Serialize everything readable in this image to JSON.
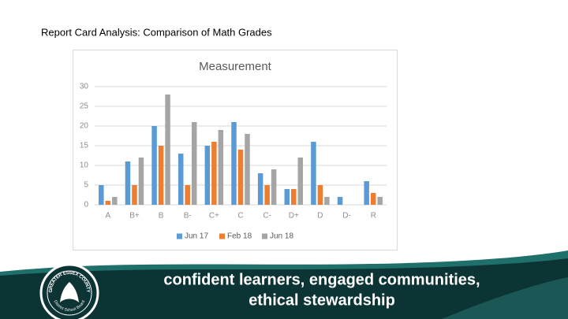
{
  "header": {
    "title": "Report Card Analysis: Comparison of Math Grades"
  },
  "chart_data": {
    "type": "bar",
    "title": "Measurement",
    "categories": [
      "A",
      "B+",
      "B",
      "B-",
      "C+",
      "C",
      "C-",
      "D+",
      "D",
      "D-",
      "R"
    ],
    "series": [
      {
        "name": "Jun 17",
        "color": "#5b9bd5",
        "values": [
          5,
          11,
          20,
          13,
          15,
          21,
          8,
          4,
          16,
          2,
          6
        ]
      },
      {
        "name": "Feb 18",
        "color": "#ed7d31",
        "values": [
          1,
          5,
          15,
          5,
          16,
          14,
          5,
          4,
          5,
          0,
          3
        ]
      },
      {
        "name": "Jun 18",
        "color": "#a5a5a5",
        "values": [
          2,
          12,
          28,
          21,
          19,
          18,
          9,
          12,
          2,
          0,
          2
        ]
      }
    ],
    "ylim": [
      0,
      30
    ],
    "yticks": [
      0,
      5,
      10,
      15,
      20,
      25,
      30
    ],
    "grid": true,
    "legend": "bottom"
  },
  "footer": {
    "slogan": [
      "confident learners, engaged communities,",
      "ethical stewardship"
    ],
    "logo": {
      "top": "GREATER ESSEX COUNTY",
      "bottom": "District School Board"
    }
  }
}
